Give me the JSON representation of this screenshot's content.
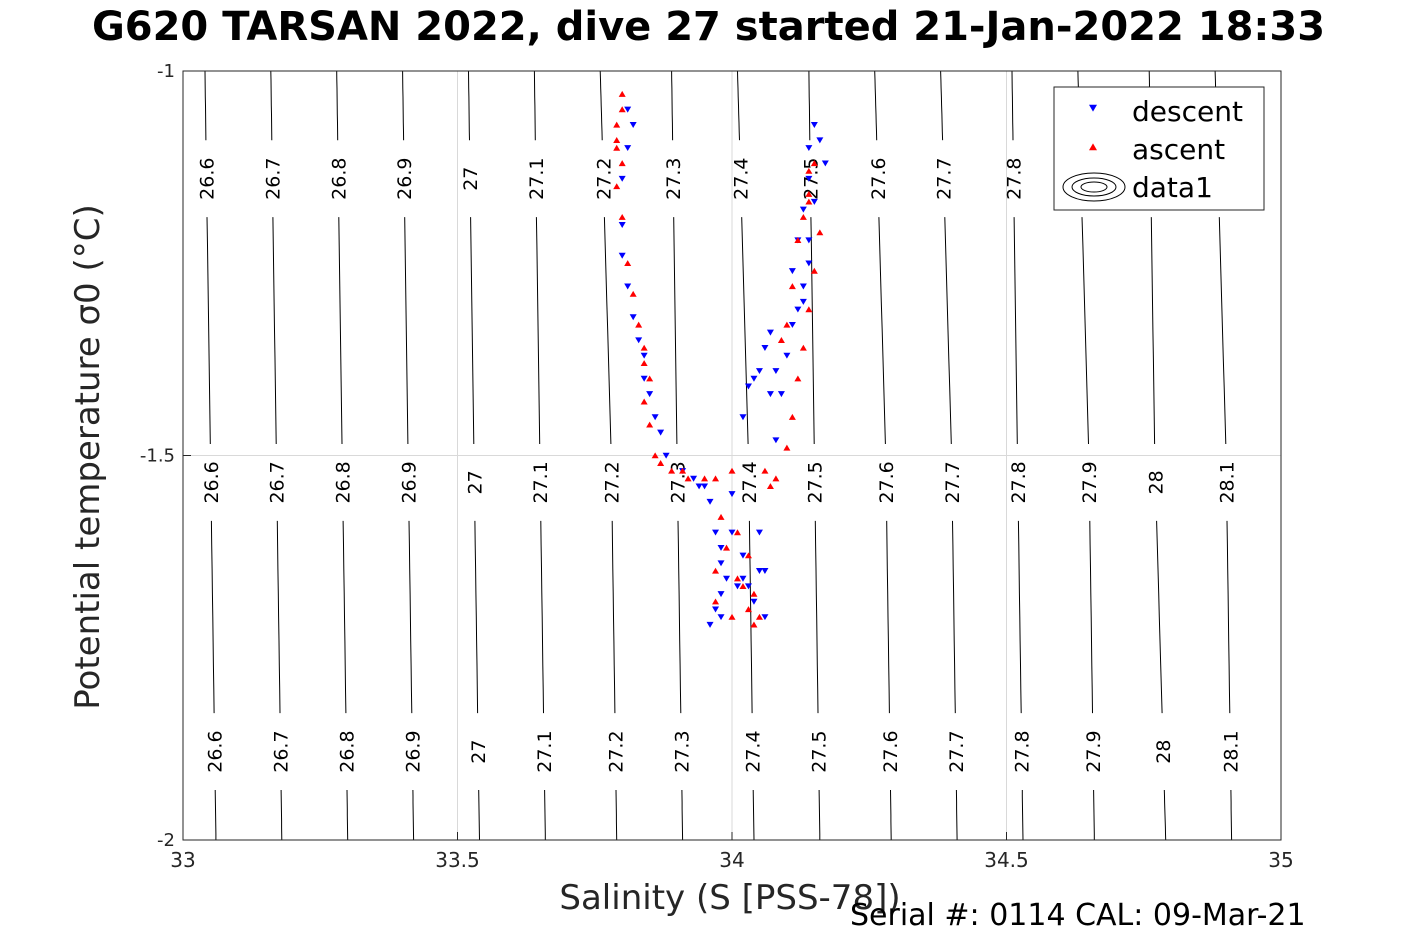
{
  "title": "G620 TARSAN 2022, dive 27 started 21-Jan-2022 18:33",
  "footer": "Serial #: 0114  CAL: 09-Mar-21",
  "chart_data": {
    "type": "scatter",
    "title": "G620 TARSAN 2022, dive 27 started 21-Jan-2022 18:33",
    "xlabel": "Salinity (S [PSS-78])",
    "ylabel": "Potential temperature σ0 (°C)",
    "xlim": [
      33,
      35
    ],
    "ylim": [
      -2,
      -1
    ],
    "xticks": [
      33,
      33.5,
      34,
      34.5,
      35
    ],
    "yticks": [
      -2,
      -1.5,
      -1
    ],
    "grid": true,
    "legend_position": "top-right",
    "colors": {
      "descent": "#0000ff",
      "ascent": "#ff0000",
      "contour": "#000000",
      "grid": "#d9d9d9"
    },
    "contours": {
      "name": "data1",
      "levels": [
        {
          "label": "26.6",
          "s_at": [
            33.06,
            33.05,
            33.04
          ]
        },
        {
          "label": "26.7",
          "s_at": [
            33.18,
            33.17,
            33.16
          ]
        },
        {
          "label": "26.8",
          "s_at": [
            33.3,
            33.29,
            33.28
          ]
        },
        {
          "label": "26.9",
          "s_at": [
            33.42,
            33.41,
            33.4
          ]
        },
        {
          "label": "27",
          "s_at": [
            33.54,
            33.53,
            33.52
          ]
        },
        {
          "label": "27.1",
          "s_at": [
            33.66,
            33.65,
            33.64
          ]
        },
        {
          "label": "27.2",
          "s_at": [
            33.79,
            33.78,
            33.76
          ]
        },
        {
          "label": "27.3",
          "s_at": [
            33.91,
            33.9,
            33.89
          ]
        },
        {
          "label": "27.4",
          "s_at": [
            34.04,
            34.03,
            34.01
          ]
        },
        {
          "label": "27.5",
          "s_at": [
            34.16,
            34.15,
            34.14
          ]
        },
        {
          "label": "27.6",
          "s_at": [
            34.29,
            34.28,
            34.26
          ]
        },
        {
          "label": "27.7",
          "s_at": [
            34.41,
            34.4,
            34.38
          ]
        },
        {
          "label": "27.8",
          "s_at": [
            34.53,
            34.52,
            34.51
          ]
        },
        {
          "label": "27.9",
          "s_at": [
            34.66,
            34.65,
            34.63
          ]
        },
        {
          "label": "28",
          "s_at": [
            34.79,
            34.77,
            34.76
          ]
        },
        {
          "label": "28.1",
          "s_at": [
            34.91,
            34.9,
            34.88
          ]
        }
      ],
      "theta_refs": [
        -2,
        -1.5,
        -1
      ]
    },
    "series": [
      {
        "name": "descent",
        "marker": "triangle-down",
        "points": [
          [
            33.81,
            -1.05
          ],
          [
            33.82,
            -1.07
          ],
          [
            33.81,
            -1.1
          ],
          [
            33.8,
            -1.14
          ],
          [
            33.8,
            -1.2
          ],
          [
            33.8,
            -1.24
          ],
          [
            33.81,
            -1.28
          ],
          [
            33.82,
            -1.32
          ],
          [
            33.83,
            -1.35
          ],
          [
            33.84,
            -1.37
          ],
          [
            33.84,
            -1.4
          ],
          [
            33.85,
            -1.42
          ],
          [
            33.86,
            -1.45
          ],
          [
            33.87,
            -1.47
          ],
          [
            33.88,
            -1.5
          ],
          [
            33.91,
            -1.52
          ],
          [
            33.93,
            -1.53
          ],
          [
            33.94,
            -1.54
          ],
          [
            33.95,
            -1.54
          ],
          [
            33.96,
            -1.56
          ],
          [
            33.97,
            -1.6
          ],
          [
            33.98,
            -1.62
          ],
          [
            33.98,
            -1.64
          ],
          [
            33.99,
            -1.66
          ],
          [
            33.98,
            -1.68
          ],
          [
            33.97,
            -1.7
          ],
          [
            33.96,
            -1.72
          ],
          [
            33.98,
            -1.71
          ],
          [
            34.01,
            -1.67
          ],
          [
            34.02,
            -1.66
          ],
          [
            34.02,
            -1.63
          ],
          [
            34.0,
            -1.6
          ],
          [
            34.0,
            -1.55
          ],
          [
            34.05,
            -1.6
          ],
          [
            34.05,
            -1.65
          ],
          [
            34.04,
            -1.69
          ],
          [
            34.06,
            -1.71
          ],
          [
            34.06,
            -1.65
          ],
          [
            34.03,
            -1.67
          ],
          [
            34.08,
            -1.48
          ],
          [
            34.09,
            -1.42
          ],
          [
            34.1,
            -1.37
          ],
          [
            34.11,
            -1.33
          ],
          [
            34.13,
            -1.3
          ],
          [
            34.14,
            -1.25
          ],
          [
            34.12,
            -1.22
          ],
          [
            34.13,
            -1.18
          ],
          [
            34.14,
            -1.14
          ],
          [
            34.14,
            -1.1
          ],
          [
            34.15,
            -1.07
          ],
          [
            34.16,
            -1.09
          ],
          [
            34.17,
            -1.12
          ],
          [
            34.15,
            -1.17
          ],
          [
            34.14,
            -1.22
          ],
          [
            34.13,
            -1.28
          ],
          [
            34.12,
            -1.31
          ],
          [
            34.11,
            -1.26
          ],
          [
            34.07,
            -1.34
          ],
          [
            34.06,
            -1.36
          ],
          [
            34.05,
            -1.39
          ],
          [
            34.04,
            -1.4
          ],
          [
            34.03,
            -1.41
          ],
          [
            34.02,
            -1.45
          ],
          [
            34.08,
            -1.39
          ],
          [
            34.07,
            -1.42
          ]
        ]
      },
      {
        "name": "ascent",
        "marker": "triangle-up",
        "points": [
          [
            33.8,
            -1.03
          ],
          [
            33.8,
            -1.05
          ],
          [
            33.79,
            -1.07
          ],
          [
            33.79,
            -1.1
          ],
          [
            33.79,
            -1.15
          ],
          [
            33.8,
            -1.19
          ],
          [
            33.81,
            -1.25
          ],
          [
            33.82,
            -1.29
          ],
          [
            33.83,
            -1.33
          ],
          [
            33.84,
            -1.36
          ],
          [
            33.84,
            -1.38
          ],
          [
            33.85,
            -1.4
          ],
          [
            33.84,
            -1.43
          ],
          [
            33.85,
            -1.46
          ],
          [
            33.86,
            -1.5
          ],
          [
            33.87,
            -1.51
          ],
          [
            33.89,
            -1.52
          ],
          [
            33.91,
            -1.52
          ],
          [
            33.92,
            -1.53
          ],
          [
            33.95,
            -1.53
          ],
          [
            33.97,
            -1.53
          ],
          [
            33.98,
            -1.58
          ],
          [
            33.99,
            -1.62
          ],
          [
            33.97,
            -1.65
          ],
          [
            33.97,
            -1.69
          ],
          [
            34.0,
            -1.71
          ],
          [
            34.01,
            -1.66
          ],
          [
            34.03,
            -1.63
          ],
          [
            34.01,
            -1.6
          ],
          [
            34.0,
            -1.52
          ],
          [
            34.02,
            -1.67
          ],
          [
            34.03,
            -1.7
          ],
          [
            34.04,
            -1.72
          ],
          [
            34.05,
            -1.71
          ],
          [
            34.04,
            -1.68
          ],
          [
            34.06,
            -1.52
          ],
          [
            34.07,
            -1.54
          ],
          [
            34.08,
            -1.53
          ],
          [
            34.1,
            -1.49
          ],
          [
            34.11,
            -1.45
          ],
          [
            34.12,
            -1.4
          ],
          [
            34.13,
            -1.36
          ],
          [
            34.14,
            -1.31
          ],
          [
            34.15,
            -1.26
          ],
          [
            34.16,
            -1.21
          ],
          [
            34.14,
            -1.17
          ],
          [
            34.14,
            -1.13
          ],
          [
            34.15,
            -1.12
          ],
          [
            34.14,
            -1.16
          ],
          [
            34.13,
            -1.19
          ],
          [
            34.12,
            -1.22
          ],
          [
            34.11,
            -1.28
          ],
          [
            34.1,
            -1.33
          ],
          [
            34.09,
            -1.35
          ],
          [
            33.79,
            -1.09
          ],
          [
            33.8,
            -1.12
          ]
        ]
      }
    ]
  }
}
